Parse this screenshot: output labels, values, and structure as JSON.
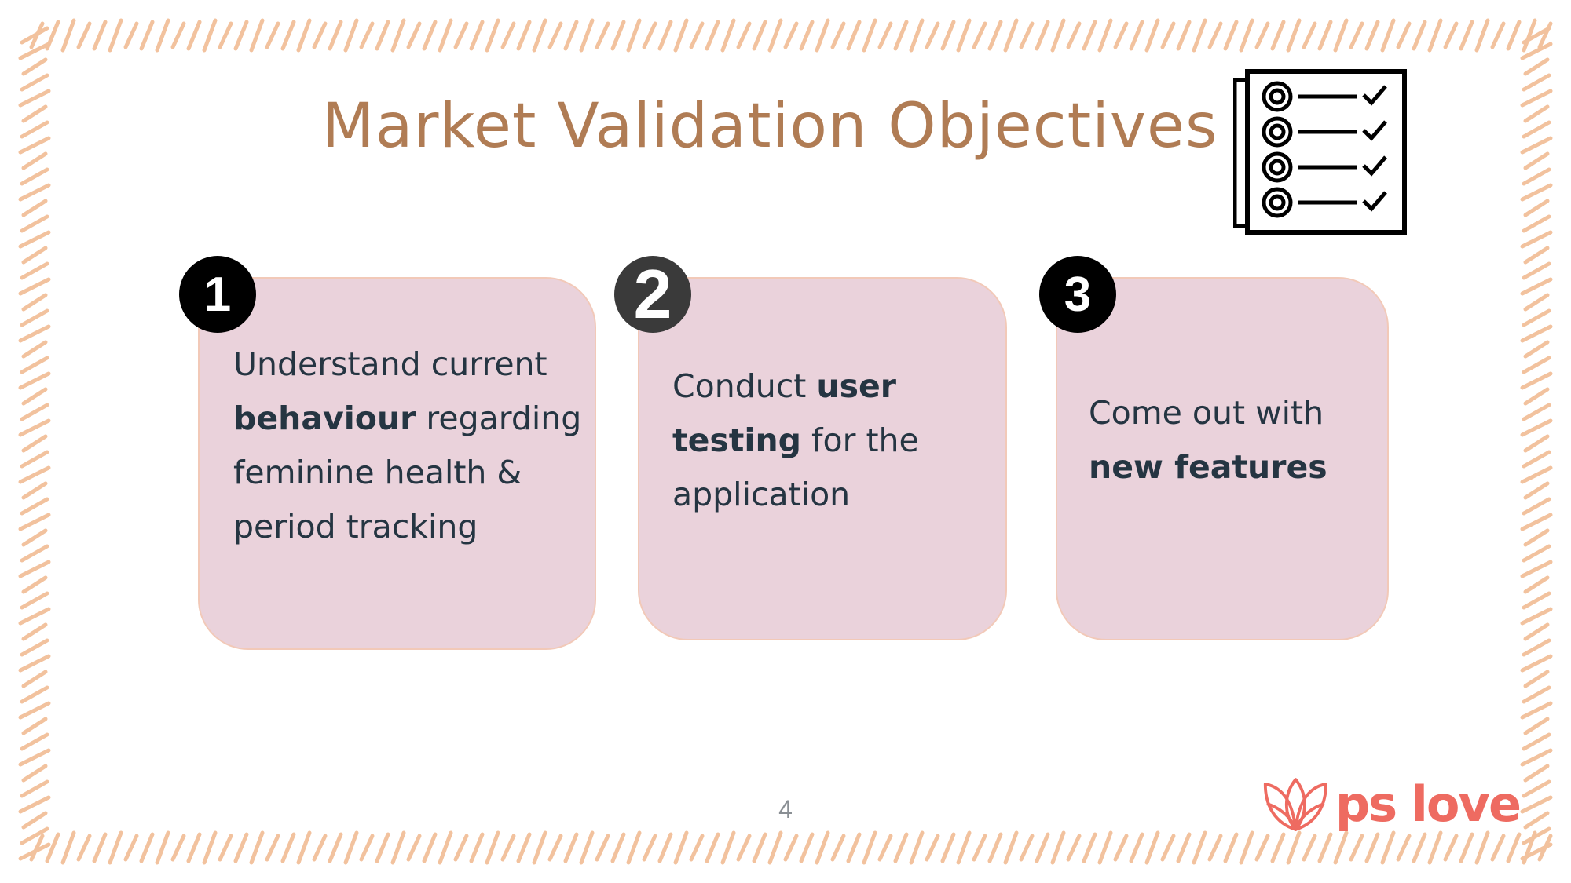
{
  "slide": {
    "title": "Market Validation Objectives",
    "page_number": "4"
  },
  "objectives": [
    {
      "number": "1",
      "parts": [
        {
          "text": "Understand current",
          "bold": false
        },
        {
          "text": "behaviour",
          "bold": true
        },
        {
          "text": "regarding",
          "bold": false
        },
        {
          "text": "feminine health &",
          "bold": false
        },
        {
          "text": "period tracking",
          "bold": false
        }
      ]
    },
    {
      "number": "2",
      "parts": [
        {
          "text": "Conduct",
          "bold": false
        },
        {
          "text": "user",
          "bold": true
        },
        {
          "text": "testing",
          "bold": true
        },
        {
          "text": "for the",
          "bold": false
        },
        {
          "text": "application",
          "bold": false
        }
      ]
    },
    {
      "number": "3",
      "parts": [
        {
          "text": "Come out with",
          "bold": false
        },
        {
          "text": "new features",
          "bold": true
        }
      ]
    }
  ],
  "logo": {
    "text": "ps love"
  },
  "icons": {
    "checklist": "checklist-icon",
    "logo_mark": "lotus-logo-icon"
  },
  "colors": {
    "title": "#b07c54",
    "card_fill": "#ead2db",
    "card_border": "#f2c9b8",
    "frame_stroke": "#f2c29e",
    "body_text": "#253542",
    "logo": "#ee6b61"
  }
}
